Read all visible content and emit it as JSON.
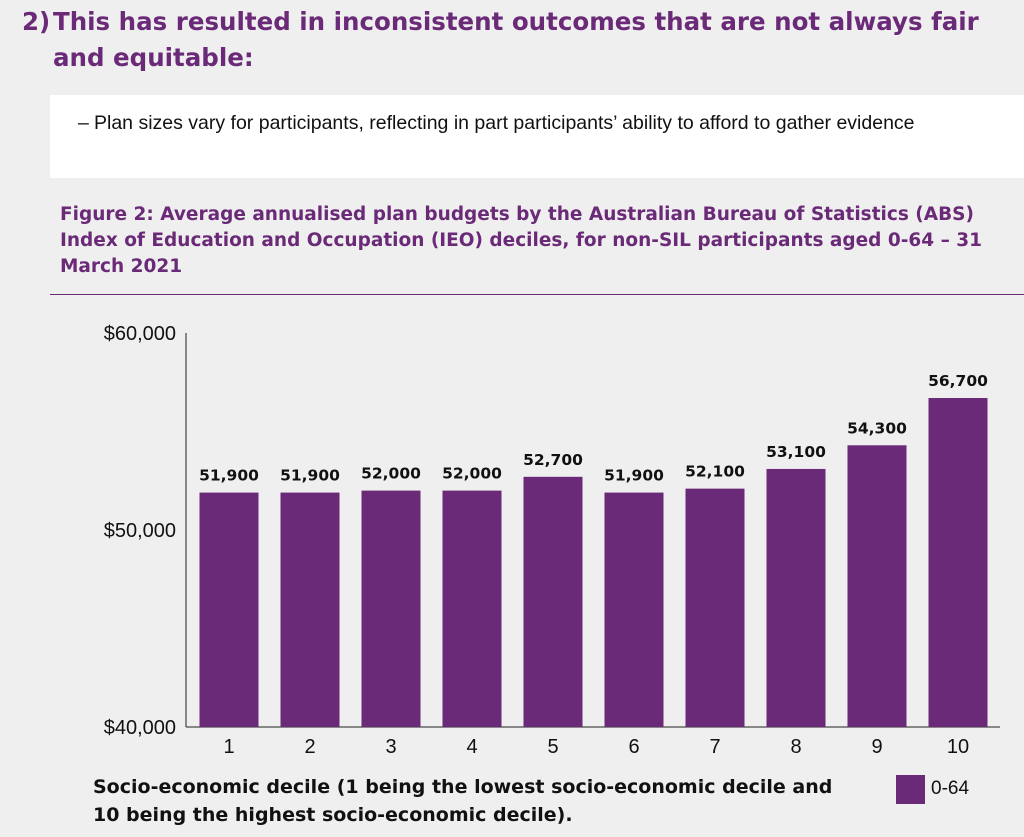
{
  "heading": {
    "number": "2)",
    "text": "This has resulted in inconsistent outcomes that are not always fair and equitable:"
  },
  "bullet": {
    "dash": "–",
    "text": "Plan sizes vary for participants, reflecting in part participants’ ability to afford to gather evidence"
  },
  "figure": {
    "title": "Figure 2: Average annualised plan budgets by the Australian Bureau of Statistics (ABS) Index of Education and Occupation (IEO) deciles, for non-SIL participants aged 0-64 – 31 March 2021",
    "x_caption": "Socio-economic decile (1 being the lowest socio-economic decile and 10 being the highest socio-economic decile).",
    "legend_label": "0-64"
  },
  "colors": {
    "accent": "#6a2a77",
    "bar": "#6a2a77",
    "background": "#efefef"
  },
  "chart_data": {
    "type": "bar",
    "title": "Figure 2: Average annualised plan budgets by the Australian Bureau of Statistics (ABS) Index of Education and Occupation (IEO) deciles, for non-SIL participants aged 0-64 – 31 March 2021",
    "xlabel": "Socio-economic decile (1 being the lowest socio-economic decile and 10 being the highest socio-economic decile).",
    "ylabel": "",
    "categories": [
      "1",
      "2",
      "3",
      "4",
      "5",
      "6",
      "7",
      "8",
      "9",
      "10"
    ],
    "series": [
      {
        "name": "0-64",
        "values": [
          51900,
          51900,
          52000,
          52000,
          52700,
          51900,
          52100,
          53100,
          54300,
          56700
        ],
        "labels": [
          "51,900",
          "51,900",
          "52,000",
          "52,000",
          "52,700",
          "51,900",
          "52,100",
          "53,100",
          "54,300",
          "56,700"
        ]
      }
    ],
    "ylim": [
      40000,
      60000
    ],
    "yticks": [
      40000,
      50000,
      60000
    ],
    "ytick_labels": [
      "$40,000",
      "$50,000",
      "$60,000"
    ],
    "grid": false,
    "legend_position": "bottom-right"
  }
}
